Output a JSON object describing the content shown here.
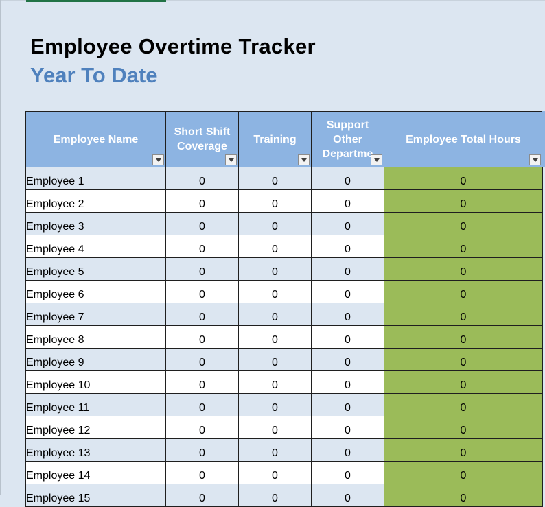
{
  "sheet": {
    "title": "Employee Overtime Tracker",
    "subtitle": "Year To Date"
  },
  "table": {
    "headers": [
      {
        "label": "Employee Name"
      },
      {
        "label": "Short Shift Coverage"
      },
      {
        "label": "Training"
      },
      {
        "label": "Support Other Departme"
      },
      {
        "label": "Employee Total Hours"
      }
    ],
    "rows": [
      {
        "name": "Employee 1",
        "short_shift": "0",
        "training": "0",
        "support": "0",
        "total": "0"
      },
      {
        "name": "Employee 2",
        "short_shift": "0",
        "training": "0",
        "support": "0",
        "total": "0"
      },
      {
        "name": "Employee 3",
        "short_shift": "0",
        "training": "0",
        "support": "0",
        "total": "0"
      },
      {
        "name": "Employee 4",
        "short_shift": "0",
        "training": "0",
        "support": "0",
        "total": "0"
      },
      {
        "name": "Employee 5",
        "short_shift": "0",
        "training": "0",
        "support": "0",
        "total": "0"
      },
      {
        "name": "Employee 6",
        "short_shift": "0",
        "training": "0",
        "support": "0",
        "total": "0"
      },
      {
        "name": "Employee 7",
        "short_shift": "0",
        "training": "0",
        "support": "0",
        "total": "0"
      },
      {
        "name": "Employee 8",
        "short_shift": "0",
        "training": "0",
        "support": "0",
        "total": "0"
      },
      {
        "name": "Employee 9",
        "short_shift": "0",
        "training": "0",
        "support": "0",
        "total": "0"
      },
      {
        "name": "Employee 10",
        "short_shift": "0",
        "training": "0",
        "support": "0",
        "total": "0"
      },
      {
        "name": "Employee 11",
        "short_shift": "0",
        "training": "0",
        "support": "0",
        "total": "0"
      },
      {
        "name": "Employee 12",
        "short_shift": "0",
        "training": "0",
        "support": "0",
        "total": "0"
      },
      {
        "name": "Employee 13",
        "short_shift": "0",
        "training": "0",
        "support": "0",
        "total": "0"
      },
      {
        "name": "Employee 14",
        "short_shift": "0",
        "training": "0",
        "support": "0",
        "total": "0"
      },
      {
        "name": "Employee 15",
        "short_shift": "0",
        "training": "0",
        "support": "0",
        "total": "0"
      }
    ]
  },
  "icons": {
    "filter": "chevron-down-icon"
  },
  "colors": {
    "header_fill": "#8db4e2",
    "band_fill": "#dce6f1",
    "total_fill": "#9bbb59",
    "subtitle_text": "#4f81bd",
    "sheet_tab": "#217346"
  }
}
